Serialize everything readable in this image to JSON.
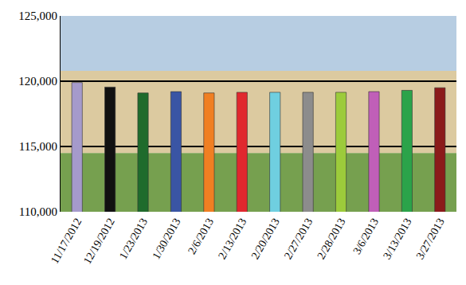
{
  "chart_data": {
    "type": "bar",
    "categories": [
      "11/17/2012",
      "12/19/2012",
      "1/23/2013",
      "1/30/2013",
      "2/6/2013",
      "2/13/2013",
      "2/20/2013",
      "2/27/2013",
      "2/28/2013",
      "3/6/2013",
      "3/13/2013",
      "3/27/2013"
    ],
    "values": [
      119900,
      119550,
      119100,
      119200,
      119100,
      119150,
      119150,
      119150,
      119150,
      119200,
      119300,
      119500
    ],
    "colors": [
      "#a59acb",
      "#111111",
      "#1f6b2c",
      "#3a55a4",
      "#f07f22",
      "#e0282e",
      "#6fcfe0",
      "#8c8c8c",
      "#9ccb3b",
      "#c05fb8",
      "#2ba34a",
      "#8b1a1a"
    ],
    "ylim": [
      110000,
      125000
    ],
    "yticks": [
      {
        "value": 110000,
        "label": "110,000"
      },
      {
        "value": 115000,
        "label": "115,000"
      },
      {
        "value": 120000,
        "label": "120,000"
      },
      {
        "value": 125000,
        "label": "125,000"
      }
    ],
    "grid": true
  }
}
